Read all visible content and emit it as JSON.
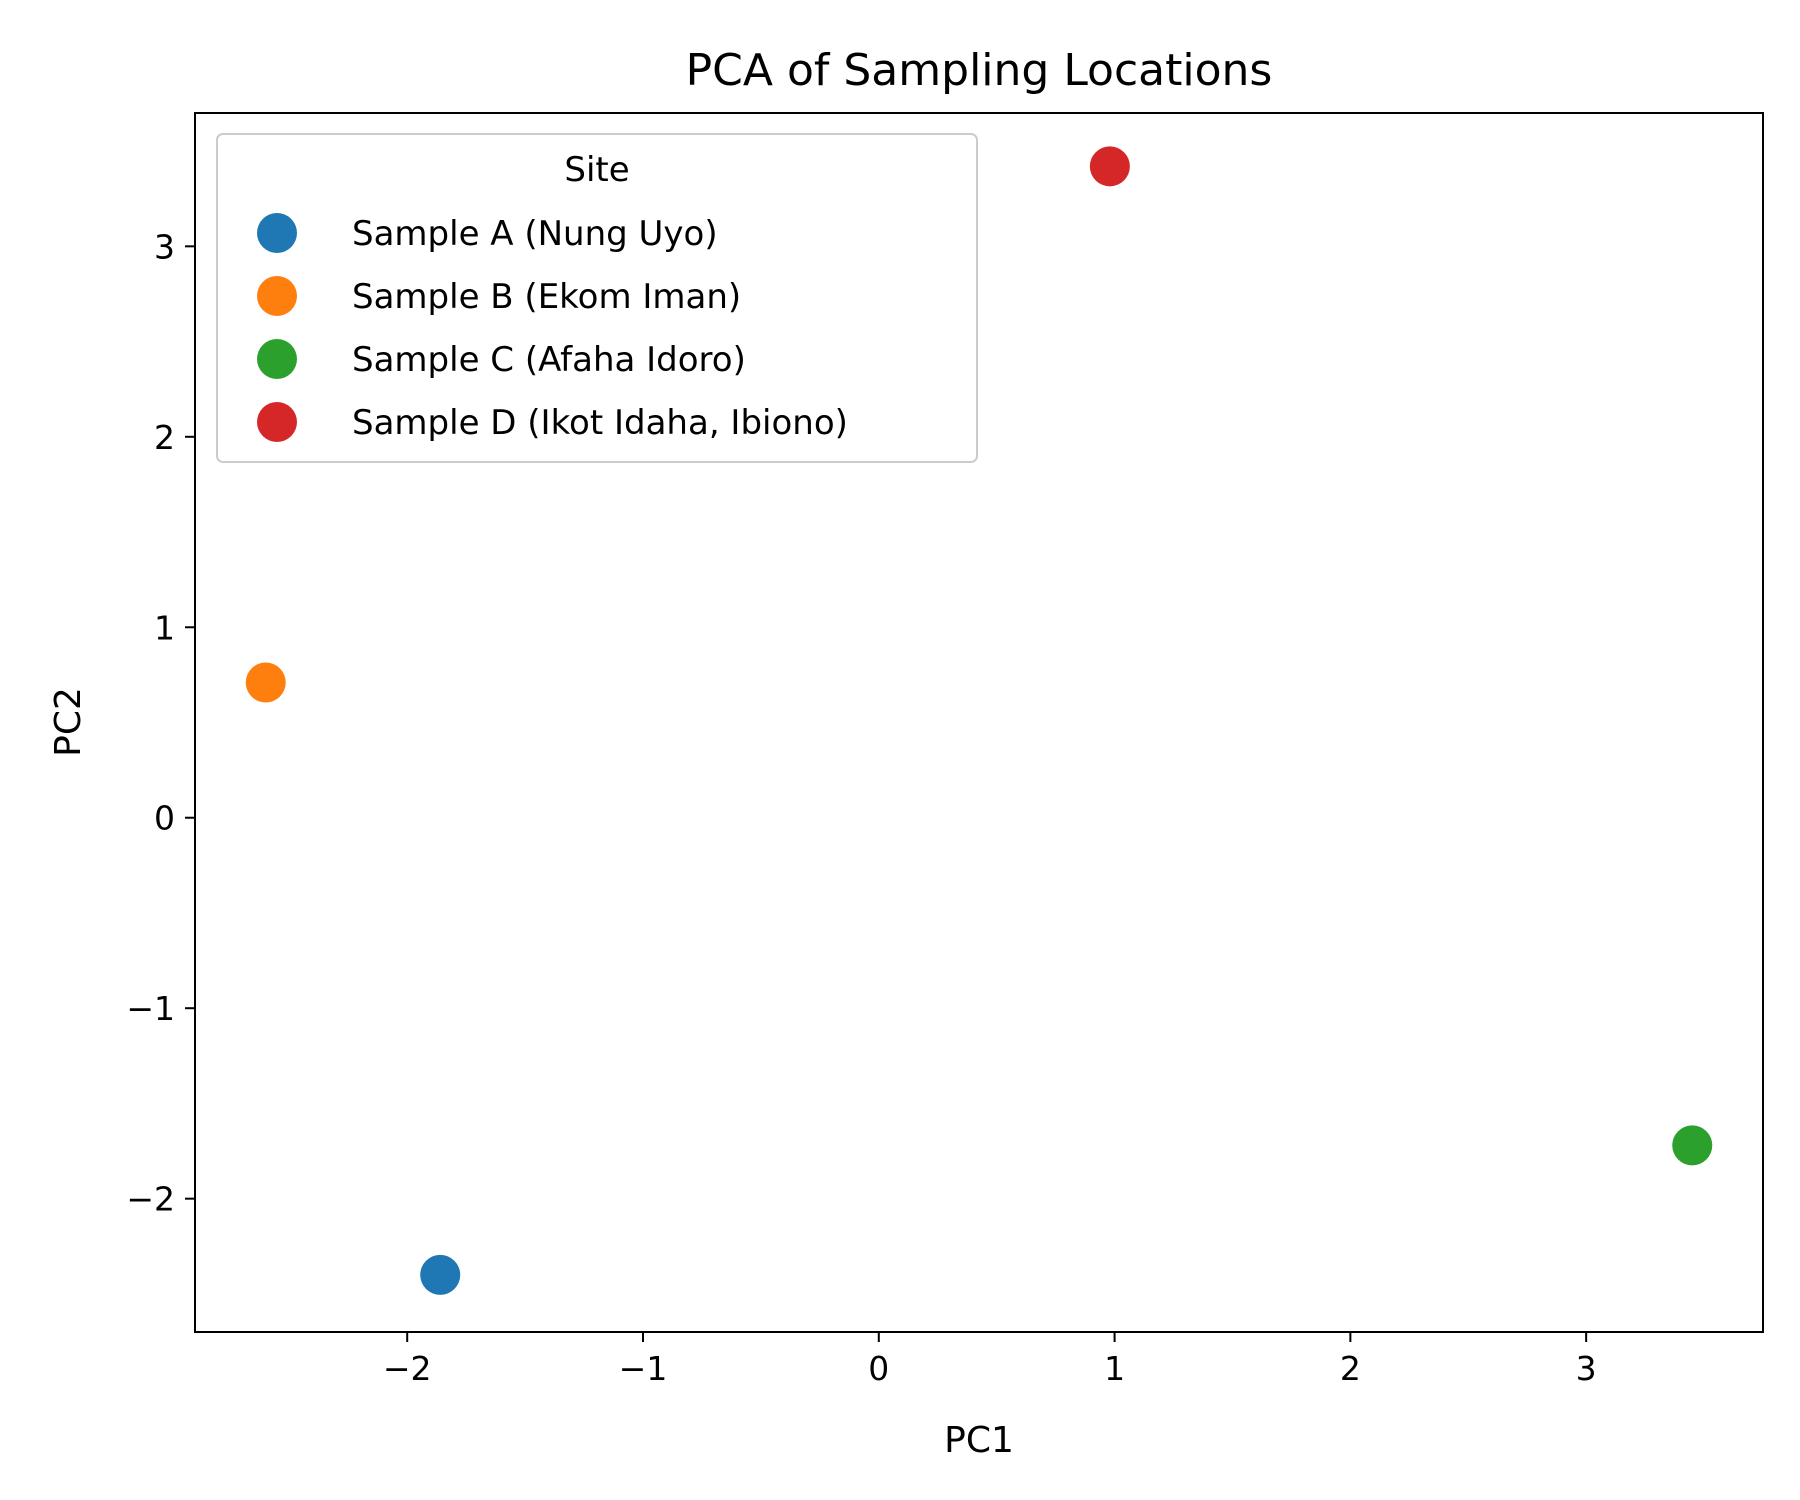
{
  "chart_data": {
    "type": "scatter",
    "title": "PCA of Sampling Locations",
    "xlabel": "PC1",
    "ylabel": "PC2",
    "xlim": [
      -2.9,
      3.75
    ],
    "ylim": [
      -2.7,
      3.7
    ],
    "xticks": [
      -2,
      -1,
      0,
      1,
      2,
      3
    ],
    "yticks": [
      -2,
      -1,
      0,
      1,
      2,
      3
    ],
    "xtick_labels": [
      "−2",
      "−1",
      "0",
      "1",
      "2",
      "3"
    ],
    "ytick_labels": [
      "−2",
      "−1",
      "0",
      "1",
      "2",
      "3"
    ],
    "grid": false,
    "legend": {
      "title": "Site",
      "placement": "upper-left"
    },
    "series": [
      {
        "name": "Sample A (Nung Uyo)",
        "color": "#1f77b4",
        "x": [
          -1.86
        ],
        "y": [
          -2.4
        ]
      },
      {
        "name": "Sample B (Ekom Iman)",
        "color": "#ff7f0e",
        "x": [
          -2.6
        ],
        "y": [
          0.71
        ]
      },
      {
        "name": "Sample C (Afaha Idoro)",
        "color": "#2ca02c",
        "x": [
          3.45
        ],
        "y": [
          -1.72
        ]
      },
      {
        "name": "Sample D (Ikot Idaha, Ibiono)",
        "color": "#d62728",
        "x": [
          0.98
        ],
        "y": [
          3.42
        ]
      }
    ]
  }
}
